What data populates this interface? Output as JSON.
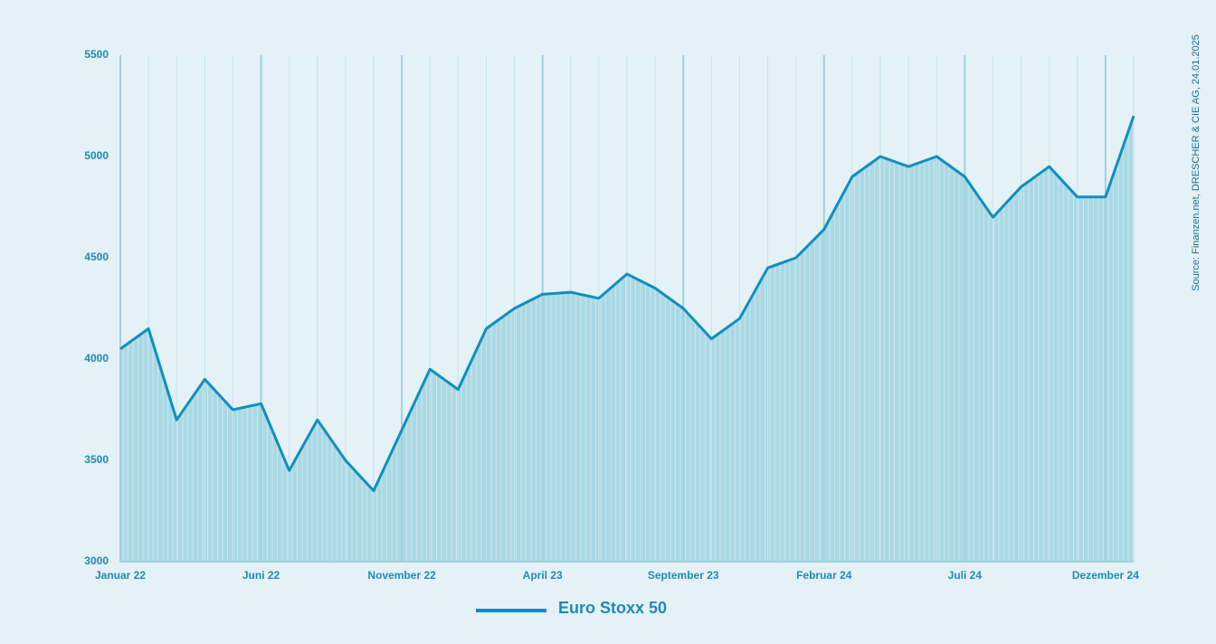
{
  "chart_data": {
    "type": "line",
    "source": "Source: Finanzen.net, DRESCHER & CIE AG, 24.01.2025",
    "categories": [
      "Januar 22",
      null,
      null,
      null,
      null,
      "Juni 22",
      null,
      null,
      null,
      null,
      "November 22",
      null,
      null,
      null,
      null,
      "April 23",
      null,
      null,
      null,
      null,
      "September 23",
      null,
      null,
      null,
      null,
      "Februar 24",
      null,
      null,
      null,
      null,
      "Juli 24",
      null,
      null,
      null,
      null,
      "Dezember 24",
      null
    ],
    "series": [
      {
        "name": "Euro Stoxx 50",
        "color": "#0f8fbf",
        "values": [
          4050,
          4150,
          3700,
          3900,
          3750,
          3780,
          3450,
          3700,
          3500,
          3350,
          3650,
          3950,
          3850,
          4150,
          4250,
          4320,
          4330,
          4300,
          4420,
          4350,
          4250,
          4100,
          4200,
          4450,
          4500,
          4640,
          4900,
          5000,
          4950,
          5000,
          4900,
          4700,
          4850,
          4950,
          4800,
          4800,
          5200
        ]
      }
    ],
    "ylim": [
      3000,
      5500
    ],
    "yticks": [
      3000,
      3500,
      4000,
      4500,
      5000,
      5500
    ]
  }
}
